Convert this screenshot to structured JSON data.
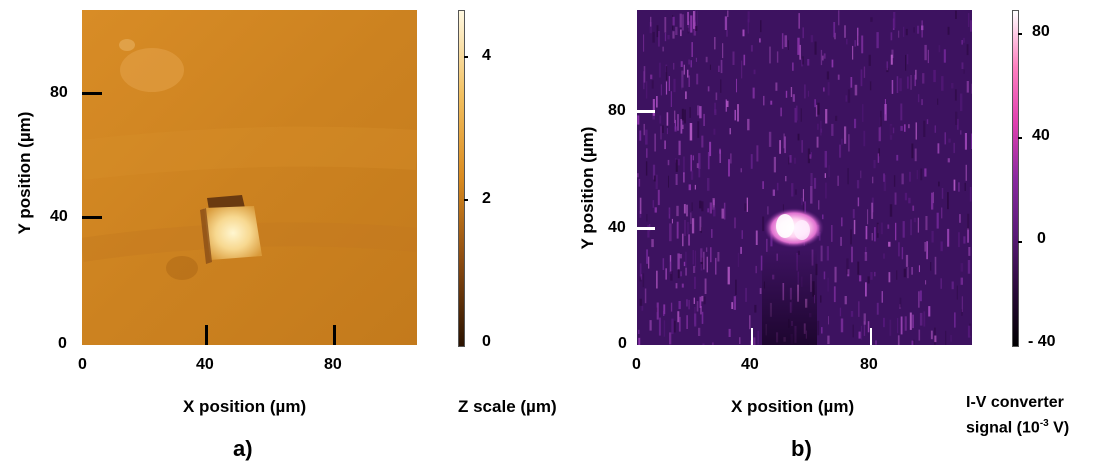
{
  "panels": [
    {
      "id": "a",
      "panel_label": "a)",
      "xlabel": "X position (µm)",
      "ylabel": "Y position (µm)",
      "x_ticks": [
        "0",
        "40",
        "80"
      ],
      "y_ticks": [
        "0",
        "40",
        "80"
      ],
      "colorbar": {
        "label": "Z scale (µm)",
        "ticks": [
          "0",
          "2",
          "4"
        ],
        "range": [
          0,
          4.6
        ],
        "colors": [
          "#2a1200",
          "#8a4a10",
          "#d98a1e",
          "#f2c060",
          "#fff8e0"
        ]
      },
      "colors": {
        "background": "#cf8522",
        "feature": "#fff2c0"
      }
    },
    {
      "id": "b",
      "panel_label": "b)",
      "xlabel": "X position (µm)",
      "ylabel": "Y position (µm)",
      "x_ticks": [
        "0",
        "40",
        "80"
      ],
      "y_ticks": [
        "0",
        "40",
        "80"
      ],
      "colorbar": {
        "label_line1": "I-V converter",
        "label_line2": "signal (10",
        "label_exp": "-3",
        "label_tail": " V)",
        "ticks": [
          "- 40",
          "0",
          "40",
          "80"
        ],
        "range": [
          -40,
          88
        ],
        "colors": [
          "#000000",
          "#2a0a3a",
          "#5a1a78",
          "#8a2aa0",
          "#e040b0",
          "#ff80c0",
          "#ffffff"
        ]
      },
      "colors": {
        "background": "#3d1260",
        "feature": "#ffffff"
      }
    }
  ]
}
